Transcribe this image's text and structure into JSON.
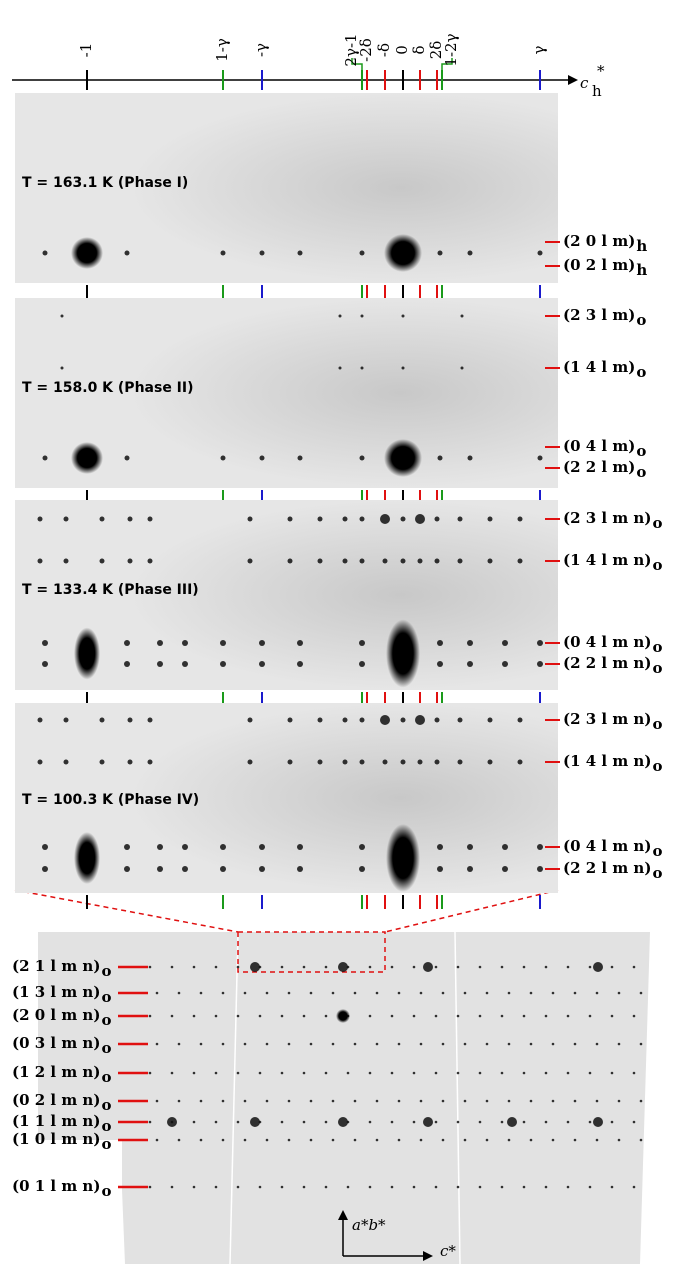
{
  "axis": {
    "label": "c",
    "label_sub": "h",
    "label_sup": "*",
    "ticks": [
      {
        "label": "-1",
        "color": "#000000"
      },
      {
        "label": "1-γ",
        "color": "#1a9a1a"
      },
      {
        "label": "-γ",
        "color": "#1a1acc"
      },
      {
        "label": "2γ-1",
        "color": "#1a9a1a"
      },
      {
        "label": "-2δ",
        "color": "#e01010"
      },
      {
        "label": "-δ",
        "color": "#e01010"
      },
      {
        "label": "0",
        "color": "#000000"
      },
      {
        "label": "δ",
        "color": "#e01010"
      },
      {
        "label": "2δ",
        "color": "#e01010"
      },
      {
        "label": "1-2γ",
        "color": "#1a9a1a"
      },
      {
        "label": "γ",
        "color": "#1a1acc"
      }
    ]
  },
  "panels": [
    {
      "title": "T = 163.1 K (Phase I)",
      "labels": [
        {
          "text": "(2 0 l m)",
          "sub": "h"
        },
        {
          "text": "(0 2 l m)",
          "sub": "h"
        }
      ]
    },
    {
      "title": "T = 158.0 K (Phase II)",
      "labels": [
        {
          "text": "(2 3 l m)",
          "sub": "o"
        },
        {
          "text": "(1 4 l m)",
          "sub": "o"
        },
        {
          "text": "(0 4 l m)",
          "sub": "o"
        },
        {
          "text": "(2 2 l m)",
          "sub": "o"
        }
      ]
    },
    {
      "title": "T = 133.4 K (Phase III)",
      "labels": [
        {
          "text": "(2 3 l m n)",
          "sub": "o"
        },
        {
          "text": "(1 4 l m n)",
          "sub": "o"
        },
        {
          "text": "(0 4 l m n)",
          "sub": "o"
        },
        {
          "text": "(2 2 l m n)",
          "sub": "o"
        }
      ]
    },
    {
      "title": "T = 100.3 K (Phase IV)",
      "labels": [
        {
          "text": "(2 3 l m n)",
          "sub": "o"
        },
        {
          "text": "(1 4 l m n)",
          "sub": "o"
        },
        {
          "text": "(0 4 l m n)",
          "sub": "o"
        },
        {
          "text": "(2 2 l m n)",
          "sub": "o"
        }
      ]
    }
  ],
  "overview": {
    "labels": [
      {
        "text": "(2 1 l m n)",
        "sub": "o"
      },
      {
        "text": "(1 3 l m n)",
        "sub": "o"
      },
      {
        "text": "(2 0 l m n)",
        "sub": "o"
      },
      {
        "text": "(0 3 l m n)",
        "sub": "o"
      },
      {
        "text": "(1 2 l m n)",
        "sub": "o"
      },
      {
        "text": "(0 2 l m n)",
        "sub": "o"
      },
      {
        "text": "(1 1 l m n)",
        "sub": "o"
      },
      {
        "text": "(1 0 l m n)",
        "sub": "o"
      },
      {
        "text": "(0 1 l m n)",
        "sub": "o"
      }
    ],
    "axis_vertical": "a*b*",
    "axis_horizontal": "c*"
  }
}
